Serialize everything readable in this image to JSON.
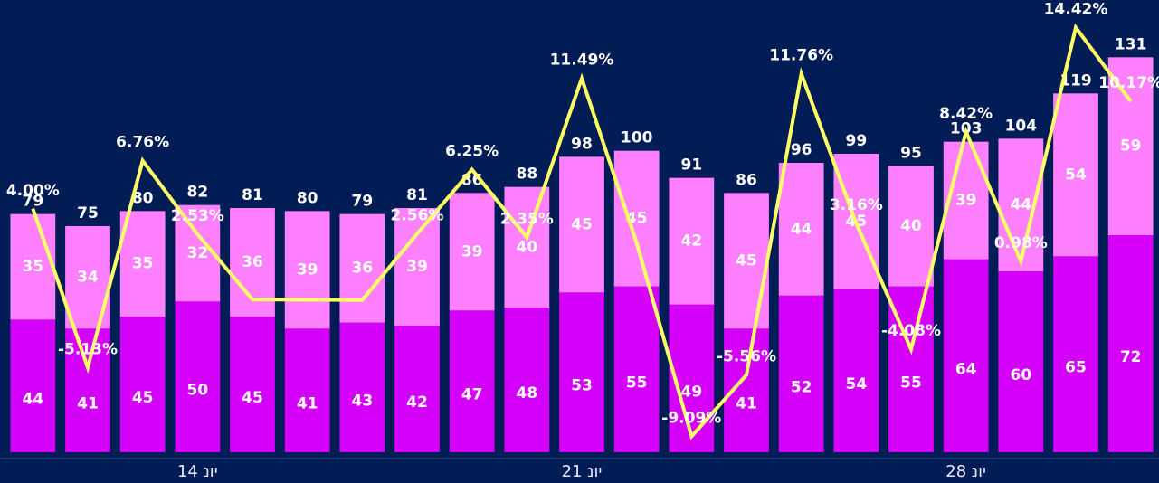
{
  "chart_data": {
    "type": "bar",
    "stacked": true,
    "categories": [
      null,
      null,
      null,
      "14 יונ",
      null,
      null,
      null,
      null,
      null,
      null,
      "21 יונ",
      null,
      null,
      null,
      null,
      null,
      null,
      "28 יונ",
      null,
      null,
      null
    ],
    "ylim": [
      0,
      150
    ],
    "y2lim": [
      -10,
      16
    ],
    "series": [
      {
        "color": "#d500f9",
        "values": [
          44,
          41,
          45,
          50,
          45,
          41,
          43,
          42,
          47,
          48,
          53,
          55,
          49,
          41,
          52,
          54,
          55,
          64,
          60,
          65,
          72
        ]
      },
      {
        "color": "#ff80ff",
        "values": [
          35,
          34,
          35,
          32,
          36,
          39,
          36,
          39,
          39,
          40,
          45,
          45,
          42,
          45,
          44,
          45,
          40,
          39,
          44,
          54,
          59
        ]
      },
      {
        "type": "line",
        "axis": "y2",
        "color": "#ffff66",
        "values": [
          4.0,
          -5.13,
          6.76,
          2.53,
          -1.22,
          -1.23,
          -1.25,
          2.56,
          6.25,
          2.35,
          11.49,
          2.04,
          -9.09,
          -5.56,
          11.76,
          3.16,
          -4.08,
          8.42,
          0.98,
          14.42,
          10.17
        ],
        "value_labels": [
          "4.00%",
          "-5.13%",
          "6.76%",
          "2.53%",
          null,
          null,
          null,
          "2.56%",
          "6.25%",
          "2.35%",
          "11.49%",
          null,
          "-9.09%",
          "-5.56%",
          "11.76%",
          "3.16%",
          "-4.08%",
          "8.42%",
          "0.98%",
          "14.42%",
          "10.17%"
        ]
      }
    ],
    "totals": [
      79,
      75,
      80,
      82,
      81,
      80,
      79,
      81,
      86,
      88,
      98,
      100,
      91,
      86,
      96,
      99,
      95,
      103,
      104,
      119,
      131
    ]
  }
}
